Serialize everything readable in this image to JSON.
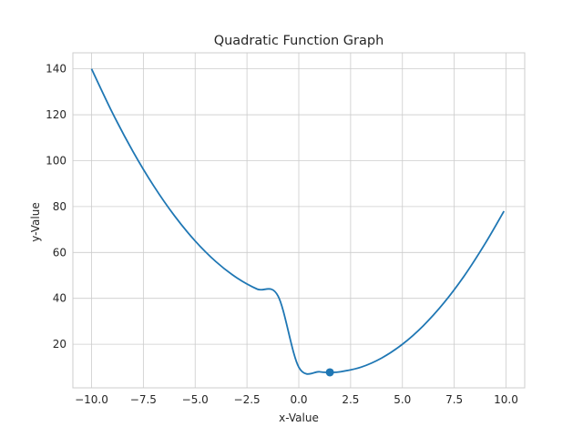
{
  "chart_data": {
    "type": "line",
    "title": "Quadratic Function Graph",
    "xlabel": "x-Value",
    "ylabel": "y-Value",
    "xlim": [
      -10.9,
      10.9
    ],
    "ylim": [
      1.0,
      147.0
    ],
    "grid": true,
    "x_ticks": [
      -10.0,
      -7.5,
      -5.0,
      -2.5,
      0.0,
      2.5,
      5.0,
      7.5,
      10.0
    ],
    "x_tick_labels": [
      "−10.0",
      "−7.5",
      "−5.0",
      "−2.5",
      "0.0",
      "2.5",
      "5.0",
      "7.5",
      "10.0"
    ],
    "y_ticks": [
      20,
      40,
      60,
      80,
      100,
      120,
      140
    ],
    "y_tick_labels": [
      "20",
      "40",
      "60",
      "80",
      "100",
      "120",
      "140"
    ],
    "series": [
      {
        "x": [
          -10,
          -9,
          -8,
          -7,
          -6,
          -5,
          -4,
          -3,
          -2,
          -1,
          0,
          1,
          1.5,
          2,
          3,
          4,
          5,
          6,
          7,
          8,
          9,
          9.9
        ],
        "y": [
          140,
          121,
          104,
          89,
          76,
          65,
          56,
          49,
          44,
          41,
          10,
          8,
          7.75,
          8,
          10,
          14,
          20,
          28,
          38,
          50,
          64,
          78
        ],
        "color": "#1f77b4"
      }
    ],
    "highlight_point": {
      "x": 1.5,
      "y": 7.75,
      "color": "#1f77b4"
    }
  }
}
